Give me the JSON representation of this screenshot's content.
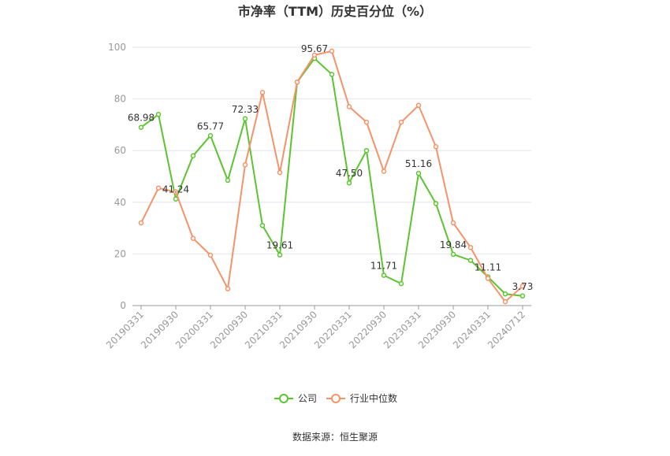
{
  "chart_data": {
    "type": "line",
    "title": "市净率（TTM）历史百分位（%）",
    "source": "数据来源：恒生聚源",
    "categories": [
      "20190331",
      null,
      "20190930",
      null,
      "20200331",
      null,
      "20200930",
      null,
      "20210331",
      null,
      "20210930",
      null,
      "20220331",
      null,
      "20220930",
      null,
      "20230331",
      null,
      "20230930",
      null,
      "20240331",
      null,
      "20240712"
    ],
    "series": [
      {
        "name": "公司",
        "color": "#5cc42f",
        "values": [
          68.98,
          74,
          41.24,
          58,
          65.77,
          48.5,
          72.33,
          31,
          19.61,
          86.5,
          95.67,
          89.5,
          47.5,
          60,
          11.71,
          8.5,
          51.16,
          39.5,
          19.84,
          17.5,
          11.11,
          4.5,
          3.73
        ],
        "value_labels": [
          "68.98",
          null,
          "41.24",
          null,
          "65.77",
          null,
          "72.33",
          null,
          "19.61",
          null,
          "95.67",
          null,
          "47.50",
          null,
          "11.71",
          null,
          "51.16",
          null,
          "19.84",
          null,
          "11.11",
          null,
          "3.73"
        ]
      },
      {
        "name": "行业中位数",
        "color": "#f4936a",
        "values": [
          32,
          45.5,
          44,
          26,
          19.5,
          6.5,
          54.5,
          82.5,
          51.5,
          86.5,
          97,
          98.5,
          77,
          71,
          52,
          71,
          77.5,
          61.5,
          32,
          22.5,
          10.5,
          1.5,
          7.5
        ]
      }
    ],
    "ylim": [
      0,
      100
    ],
    "yticks": [
      0,
      20,
      40,
      60,
      80,
      100
    ],
    "grid": true
  }
}
